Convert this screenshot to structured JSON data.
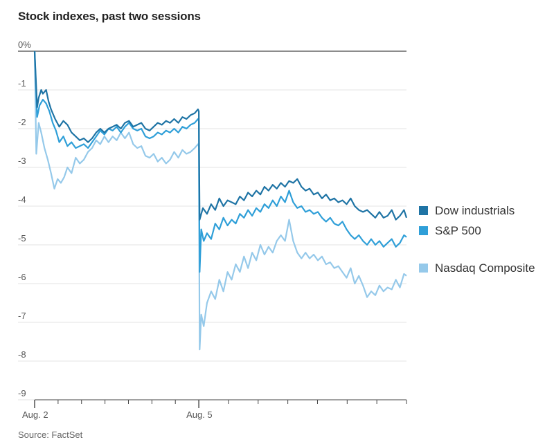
{
  "chart_data": {
    "type": "line",
    "title": "Stock indexes, past two sessions",
    "source": "Source: FactSet",
    "xlabel": "",
    "ylabel": "",
    "ylim": [
      -9,
      0
    ],
    "y_ticks": [
      "0%",
      "-1",
      "-2",
      "-3",
      "-4",
      "-5",
      "-6",
      "-7",
      "-8",
      "-9"
    ],
    "x_ticks": [
      "Aug. 2",
      "Aug. 5"
    ],
    "grid": true,
    "legend": "right",
    "colors": {
      "dow": "#1f74a5",
      "sp": "#2f9fd8",
      "nasdaq": "#95c9ea",
      "axis": "#666666",
      "grid": "#e3e3e3"
    },
    "series": [
      {
        "name": "Dow industrials",
        "color": "#1f74a5",
        "points": [
          [
            0,
            0
          ],
          [
            0.03,
            -1.45
          ],
          [
            0.05,
            -1.2
          ],
          [
            0.08,
            -1.0
          ],
          [
            0.1,
            -1.1
          ],
          [
            0.12,
            -1.05
          ],
          [
            0.14,
            -1.0
          ],
          [
            0.17,
            -1.3
          ],
          [
            0.2,
            -1.5
          ],
          [
            0.25,
            -1.75
          ],
          [
            0.3,
            -1.95
          ],
          [
            0.35,
            -1.8
          ],
          [
            0.4,
            -1.9
          ],
          [
            0.45,
            -2.1
          ],
          [
            0.5,
            -2.2
          ],
          [
            0.55,
            -2.3
          ],
          [
            0.6,
            -2.25
          ],
          [
            0.65,
            -2.35
          ],
          [
            0.7,
            -2.25
          ],
          [
            0.75,
            -2.1
          ],
          [
            0.8,
            -2.0
          ],
          [
            0.85,
            -2.1
          ],
          [
            0.9,
            -2.0
          ],
          [
            0.95,
            -1.95
          ],
          [
            1.0,
            -1.9
          ],
          [
            1.05,
            -2.0
          ],
          [
            1.1,
            -1.85
          ],
          [
            1.15,
            -1.8
          ],
          [
            1.2,
            -1.95
          ],
          [
            1.25,
            -1.9
          ],
          [
            1.3,
            -1.85
          ],
          [
            1.35,
            -2.0
          ],
          [
            1.4,
            -2.05
          ],
          [
            1.45,
            -1.95
          ],
          [
            1.5,
            -1.85
          ],
          [
            1.55,
            -1.9
          ],
          [
            1.6,
            -1.8
          ],
          [
            1.65,
            -1.85
          ],
          [
            1.7,
            -1.75
          ],
          [
            1.75,
            -1.85
          ],
          [
            1.8,
            -1.7
          ],
          [
            1.85,
            -1.75
          ],
          [
            1.9,
            -1.65
          ],
          [
            1.95,
            -1.6
          ],
          [
            1.99,
            -1.5
          ],
          [
            2.0,
            -1.55
          ],
          [
            2.01,
            -4.35
          ],
          [
            2.05,
            -4.05
          ],
          [
            2.1,
            -4.2
          ],
          [
            2.15,
            -3.95
          ],
          [
            2.2,
            -4.1
          ],
          [
            2.25,
            -3.8
          ],
          [
            2.3,
            -4.0
          ],
          [
            2.35,
            -3.85
          ],
          [
            2.4,
            -3.9
          ],
          [
            2.45,
            -3.95
          ],
          [
            2.5,
            -3.75
          ],
          [
            2.55,
            -3.85
          ],
          [
            2.6,
            -3.65
          ],
          [
            2.65,
            -3.75
          ],
          [
            2.7,
            -3.6
          ],
          [
            2.75,
            -3.7
          ],
          [
            2.8,
            -3.5
          ],
          [
            2.85,
            -3.6
          ],
          [
            2.9,
            -3.45
          ],
          [
            2.95,
            -3.55
          ],
          [
            3.0,
            -3.4
          ],
          [
            3.05,
            -3.5
          ],
          [
            3.1,
            -3.35
          ],
          [
            3.15,
            -3.4
          ],
          [
            3.2,
            -3.3
          ],
          [
            3.25,
            -3.5
          ],
          [
            3.3,
            -3.6
          ],
          [
            3.35,
            -3.55
          ],
          [
            3.4,
            -3.7
          ],
          [
            3.45,
            -3.65
          ],
          [
            3.5,
            -3.8
          ],
          [
            3.55,
            -3.7
          ],
          [
            3.6,
            -3.85
          ],
          [
            3.65,
            -3.8
          ],
          [
            3.7,
            -3.9
          ],
          [
            3.75,
            -3.85
          ],
          [
            3.8,
            -3.95
          ],
          [
            3.85,
            -3.8
          ],
          [
            3.9,
            -4.0
          ],
          [
            3.95,
            -4.1
          ],
          [
            4.0,
            -4.15
          ],
          [
            4.05,
            -4.1
          ],
          [
            4.1,
            -4.2
          ],
          [
            4.15,
            -4.3
          ],
          [
            4.2,
            -4.15
          ],
          [
            4.25,
            -4.3
          ],
          [
            4.3,
            -4.25
          ],
          [
            4.35,
            -4.1
          ],
          [
            4.4,
            -4.35
          ],
          [
            4.45,
            -4.25
          ],
          [
            4.5,
            -4.1
          ],
          [
            4.53,
            -4.3
          ]
        ]
      },
      {
        "name": "S&P 500",
        "color": "#2f9fd8",
        "points": [
          [
            0,
            0
          ],
          [
            0.03,
            -1.7
          ],
          [
            0.06,
            -1.4
          ],
          [
            0.1,
            -1.25
          ],
          [
            0.14,
            -1.35
          ],
          [
            0.18,
            -1.55
          ],
          [
            0.22,
            -1.85
          ],
          [
            0.26,
            -2.05
          ],
          [
            0.3,
            -2.35
          ],
          [
            0.35,
            -2.2
          ],
          [
            0.4,
            -2.45
          ],
          [
            0.45,
            -2.35
          ],
          [
            0.5,
            -2.5
          ],
          [
            0.55,
            -2.45
          ],
          [
            0.6,
            -2.4
          ],
          [
            0.65,
            -2.5
          ],
          [
            0.7,
            -2.35
          ],
          [
            0.75,
            -2.2
          ],
          [
            0.8,
            -2.05
          ],
          [
            0.85,
            -2.15
          ],
          [
            0.9,
            -2.0
          ],
          [
            0.95,
            -2.05
          ],
          [
            1.0,
            -1.95
          ],
          [
            1.05,
            -2.1
          ],
          [
            1.1,
            -1.95
          ],
          [
            1.15,
            -1.85
          ],
          [
            1.2,
            -2.0
          ],
          [
            1.25,
            -2.05
          ],
          [
            1.3,
            -2.0
          ],
          [
            1.35,
            -2.2
          ],
          [
            1.4,
            -2.25
          ],
          [
            1.45,
            -2.2
          ],
          [
            1.5,
            -2.1
          ],
          [
            1.55,
            -2.15
          ],
          [
            1.6,
            -2.05
          ],
          [
            1.65,
            -2.1
          ],
          [
            1.7,
            -2.0
          ],
          [
            1.75,
            -2.1
          ],
          [
            1.8,
            -1.95
          ],
          [
            1.85,
            -2.0
          ],
          [
            1.9,
            -1.9
          ],
          [
            1.95,
            -1.85
          ],
          [
            1.99,
            -1.75
          ],
          [
            2.0,
            -1.8
          ],
          [
            2.01,
            -5.7
          ],
          [
            2.03,
            -4.6
          ],
          [
            2.06,
            -4.9
          ],
          [
            2.1,
            -4.7
          ],
          [
            2.15,
            -4.85
          ],
          [
            2.2,
            -4.45
          ],
          [
            2.25,
            -4.6
          ],
          [
            2.3,
            -4.3
          ],
          [
            2.35,
            -4.5
          ],
          [
            2.4,
            -4.35
          ],
          [
            2.45,
            -4.45
          ],
          [
            2.5,
            -4.2
          ],
          [
            2.55,
            -4.3
          ],
          [
            2.6,
            -4.1
          ],
          [
            2.65,
            -4.25
          ],
          [
            2.7,
            -4.05
          ],
          [
            2.75,
            -4.15
          ],
          [
            2.8,
            -3.95
          ],
          [
            2.85,
            -4.05
          ],
          [
            2.9,
            -3.85
          ],
          [
            2.95,
            -4.0
          ],
          [
            3.0,
            -3.75
          ],
          [
            3.05,
            -3.9
          ],
          [
            3.1,
            -3.6
          ],
          [
            3.15,
            -3.9
          ],
          [
            3.2,
            -4.05
          ],
          [
            3.25,
            -4.0
          ],
          [
            3.3,
            -4.15
          ],
          [
            3.35,
            -4.1
          ],
          [
            3.4,
            -4.2
          ],
          [
            3.45,
            -4.15
          ],
          [
            3.5,
            -4.3
          ],
          [
            3.55,
            -4.4
          ],
          [
            3.6,
            -4.3
          ],
          [
            3.65,
            -4.45
          ],
          [
            3.7,
            -4.5
          ],
          [
            3.75,
            -4.4
          ],
          [
            3.8,
            -4.6
          ],
          [
            3.85,
            -4.75
          ],
          [
            3.9,
            -4.85
          ],
          [
            3.95,
            -4.75
          ],
          [
            4.0,
            -4.9
          ],
          [
            4.05,
            -5.0
          ],
          [
            4.1,
            -4.85
          ],
          [
            4.15,
            -5.0
          ],
          [
            4.2,
            -4.9
          ],
          [
            4.25,
            -5.05
          ],
          [
            4.3,
            -4.95
          ],
          [
            4.35,
            -4.85
          ],
          [
            4.4,
            -5.05
          ],
          [
            4.45,
            -4.95
          ],
          [
            4.5,
            -4.75
          ],
          [
            4.53,
            -4.8
          ]
        ]
      },
      {
        "name": "Nasdaq Composite",
        "color": "#95c9ea",
        "points": [
          [
            0,
            0
          ],
          [
            0.02,
            -2.65
          ],
          [
            0.05,
            -1.85
          ],
          [
            0.08,
            -2.1
          ],
          [
            0.12,
            -2.5
          ],
          [
            0.16,
            -2.8
          ],
          [
            0.2,
            -3.15
          ],
          [
            0.24,
            -3.55
          ],
          [
            0.28,
            -3.3
          ],
          [
            0.32,
            -3.4
          ],
          [
            0.36,
            -3.25
          ],
          [
            0.4,
            -3.0
          ],
          [
            0.45,
            -3.15
          ],
          [
            0.5,
            -2.75
          ],
          [
            0.55,
            -2.9
          ],
          [
            0.6,
            -2.8
          ],
          [
            0.65,
            -2.6
          ],
          [
            0.7,
            -2.5
          ],
          [
            0.75,
            -2.3
          ],
          [
            0.8,
            -2.4
          ],
          [
            0.85,
            -2.2
          ],
          [
            0.9,
            -2.35
          ],
          [
            0.95,
            -2.2
          ],
          [
            1.0,
            -2.3
          ],
          [
            1.05,
            -2.1
          ],
          [
            1.1,
            -2.25
          ],
          [
            1.15,
            -2.1
          ],
          [
            1.2,
            -2.4
          ],
          [
            1.25,
            -2.5
          ],
          [
            1.3,
            -2.45
          ],
          [
            1.35,
            -2.7
          ],
          [
            1.4,
            -2.75
          ],
          [
            1.45,
            -2.65
          ],
          [
            1.5,
            -2.85
          ],
          [
            1.55,
            -2.75
          ],
          [
            1.6,
            -2.9
          ],
          [
            1.65,
            -2.8
          ],
          [
            1.7,
            -2.6
          ],
          [
            1.75,
            -2.75
          ],
          [
            1.8,
            -2.55
          ],
          [
            1.85,
            -2.65
          ],
          [
            1.9,
            -2.6
          ],
          [
            1.95,
            -2.5
          ],
          [
            1.99,
            -2.4
          ],
          [
            2.0,
            -2.45
          ],
          [
            2.01,
            -7.7
          ],
          [
            2.03,
            -6.8
          ],
          [
            2.06,
            -7.1
          ],
          [
            2.1,
            -6.5
          ],
          [
            2.15,
            -6.2
          ],
          [
            2.2,
            -6.4
          ],
          [
            2.25,
            -5.9
          ],
          [
            2.3,
            -6.2
          ],
          [
            2.35,
            -5.7
          ],
          [
            2.4,
            -5.9
          ],
          [
            2.45,
            -5.5
          ],
          [
            2.5,
            -5.7
          ],
          [
            2.55,
            -5.3
          ],
          [
            2.6,
            -5.6
          ],
          [
            2.65,
            -5.2
          ],
          [
            2.7,
            -5.4
          ],
          [
            2.75,
            -5.0
          ],
          [
            2.8,
            -5.25
          ],
          [
            2.85,
            -5.05
          ],
          [
            2.9,
            -5.2
          ],
          [
            2.95,
            -4.9
          ],
          [
            3.0,
            -4.75
          ],
          [
            3.05,
            -4.9
          ],
          [
            3.1,
            -4.35
          ],
          [
            3.15,
            -4.9
          ],
          [
            3.2,
            -5.2
          ],
          [
            3.25,
            -5.35
          ],
          [
            3.3,
            -5.2
          ],
          [
            3.35,
            -5.35
          ],
          [
            3.4,
            -5.25
          ],
          [
            3.45,
            -5.4
          ],
          [
            3.5,
            -5.3
          ],
          [
            3.55,
            -5.5
          ],
          [
            3.6,
            -5.45
          ],
          [
            3.65,
            -5.6
          ],
          [
            3.7,
            -5.55
          ],
          [
            3.75,
            -5.7
          ],
          [
            3.8,
            -5.85
          ],
          [
            3.85,
            -5.6
          ],
          [
            3.9,
            -6.0
          ],
          [
            3.95,
            -5.8
          ],
          [
            4.0,
            -6.05
          ],
          [
            4.05,
            -6.35
          ],
          [
            4.1,
            -6.2
          ],
          [
            4.15,
            -6.3
          ],
          [
            4.2,
            -6.05
          ],
          [
            4.25,
            -6.2
          ],
          [
            4.3,
            -6.1
          ],
          [
            4.35,
            -6.15
          ],
          [
            4.4,
            -5.9
          ],
          [
            4.45,
            -6.1
          ],
          [
            4.5,
            -5.75
          ],
          [
            4.53,
            -5.8
          ]
        ]
      }
    ]
  }
}
